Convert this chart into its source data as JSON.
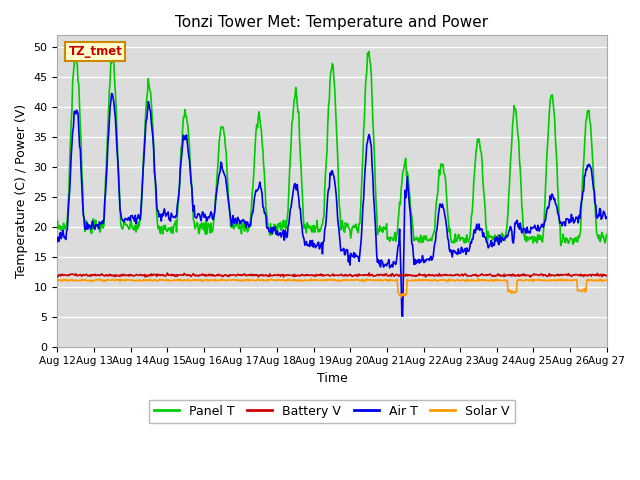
{
  "title": "Tonzi Tower Met: Temperature and Power",
  "xlabel": "Time",
  "ylabel": "Temperature (C) / Power (V)",
  "ylim": [
    0,
    52
  ],
  "yticks": [
    0,
    5,
    10,
    15,
    20,
    25,
    30,
    35,
    40,
    45,
    50
  ],
  "xtick_labels": [
    "Aug 12",
    "Aug 13",
    "Aug 14",
    "Aug 15",
    "Aug 16",
    "Aug 17",
    "Aug 18",
    "Aug 19",
    "Aug 20",
    "Aug 21",
    "Aug 22",
    "Aug 23",
    "Aug 24",
    "Aug 25",
    "Aug 26",
    "Aug 27"
  ],
  "bg_color": "#dcdcdc",
  "fig_color": "#ffffff",
  "grid_color": "#ffffff",
  "colors": {
    "panel_t": "#00cc00",
    "battery_v": "#cc0000",
    "air_t": "#0000ee",
    "solar_v": "#ff9900"
  },
  "legend_label": "TZ_tmet",
  "legend_bg": "#ffffcc",
  "legend_border": "#cc8800"
}
